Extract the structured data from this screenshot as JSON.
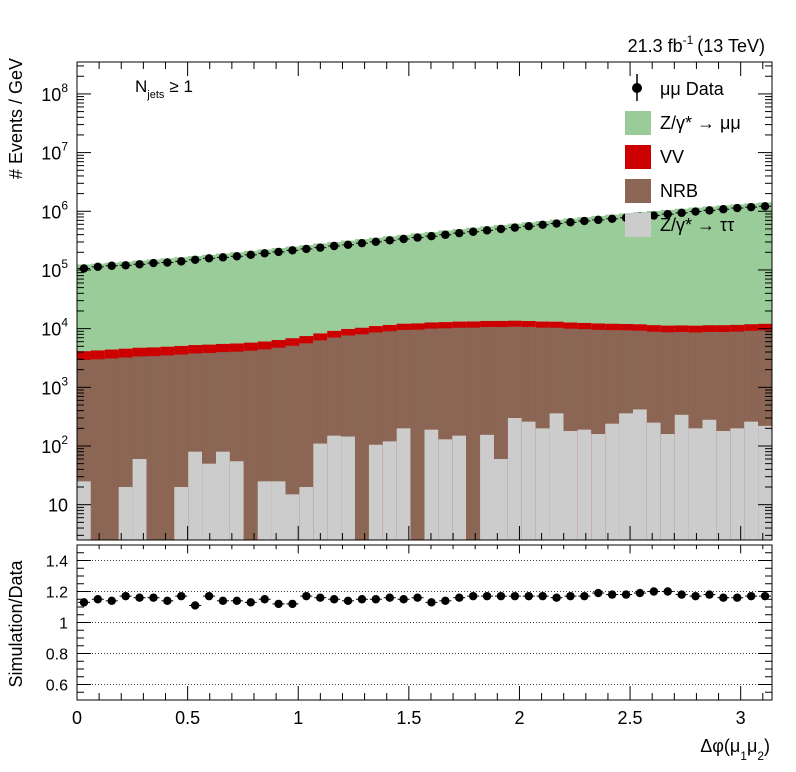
{
  "lumi_label": "21.3 fb",
  "lumi_exp": "-1",
  "lumi_energy": "(13 TeV)",
  "selection": {
    "base": "N",
    "sub": "jets",
    "rel": "≥ 1"
  },
  "colors": {
    "zmm": "#99cc99",
    "vv": "#cc0000",
    "nrb": "#8b6655",
    "ztt": "#cccccc",
    "data": "#000000"
  },
  "chart_data": [
    {
      "type": "area",
      "panel": "upper",
      "stacked": true,
      "log_y": true,
      "ylabel": "# Events / GeV",
      "ylim": [
        2.5,
        350000000
      ],
      "xlim": [
        0,
        3.1416
      ],
      "y_ticks": [
        {
          "v": 10,
          "base": "10",
          "exp": ""
        },
        {
          "v": 100,
          "base": "10",
          "exp": "2"
        },
        {
          "v": 1000,
          "base": "10",
          "exp": "3"
        },
        {
          "v": 10000,
          "base": "10",
          "exp": "4"
        },
        {
          "v": 100000,
          "base": "10",
          "exp": "5"
        },
        {
          "v": 1000000,
          "base": "10",
          "exp": "6"
        },
        {
          "v": 10000000,
          "base": "10",
          "exp": "7"
        },
        {
          "v": 100000000,
          "base": "10",
          "exp": "8"
        }
      ],
      "legend_position": "top-right",
      "legend": [
        {
          "key": "data",
          "label": "μμ Data"
        },
        {
          "key": "zmm",
          "label": "Z/γ* → μμ"
        },
        {
          "key": "vv",
          "label": "VV"
        },
        {
          "key": "nrb",
          "label": "NRB"
        },
        {
          "key": "ztt",
          "label": "Z/γ* → ττ"
        }
      ],
      "bin_edges": [
        0,
        0.0628,
        0.1257,
        0.1885,
        0.2513,
        0.3142,
        0.377,
        0.4398,
        0.5027,
        0.5655,
        0.6283,
        0.6912,
        0.754,
        0.8168,
        0.8796,
        0.9425,
        1.0053,
        1.0681,
        1.131,
        1.1938,
        1.2566,
        1.3195,
        1.3823,
        1.4451,
        1.508,
        1.5708,
        1.6336,
        1.6965,
        1.7593,
        1.8221,
        1.885,
        1.9478,
        2.0106,
        2.0735,
        2.1363,
        2.1991,
        2.2619,
        2.3248,
        2.3876,
        2.4504,
        2.5133,
        2.5761,
        2.6389,
        2.7018,
        2.7646,
        2.8274,
        2.8903,
        2.9531,
        3.0159,
        3.0788,
        3.1416
      ],
      "series": [
        {
          "key": "ztt",
          "values": [
            25,
            0,
            0,
            20,
            60,
            0,
            0,
            20,
            80,
            50,
            80,
            55,
            0,
            25,
            25,
            15,
            20,
            110,
            150,
            145,
            0,
            105,
            120,
            200,
            0,
            190,
            130,
            150,
            0,
            155,
            60,
            300,
            260,
            200,
            360,
            180,
            190,
            160,
            240,
            360,
            420,
            250,
            160,
            340,
            200,
            280,
            180,
            200,
            260,
            220
          ]
        },
        {
          "key": "nrb",
          "values": [
            2900,
            3000,
            3100,
            3200,
            3300,
            3400,
            3500,
            3600,
            3700,
            3800,
            3900,
            4000,
            4200,
            4400,
            4700,
            5100,
            5600,
            6200,
            6900,
            7500,
            8000,
            8500,
            8900,
            9300,
            9600,
            9800,
            10000,
            10200,
            10400,
            10500,
            10600,
            10500,
            10400,
            10200,
            10000,
            9800,
            9600,
            9400,
            9200,
            9000,
            8800,
            8600,
            8500,
            8400,
            8400,
            8500,
            8600,
            8700,
            8900,
            9100
          ]
        },
        {
          "key": "vv",
          "values": [
            1200,
            1250,
            1300,
            1330,
            1360,
            1390,
            1420,
            1450,
            1470,
            1490,
            1510,
            1530,
            1570,
            1610,
            1670,
            1750,
            1850,
            1970,
            2100,
            2230,
            2350,
            2450,
            2540,
            2620,
            2690,
            2750,
            2800,
            2830,
            2850,
            2860,
            2870,
            2850,
            2830,
            2800,
            2770,
            2740,
            2710,
            2690,
            2670,
            2650,
            2630,
            2620,
            2610,
            2610,
            2620,
            2640,
            2660,
            2690,
            2720,
            2760
          ]
        },
        {
          "key": "zmm",
          "values": [
            120000,
            124000,
            129000,
            134000,
            140000,
            146000,
            153000,
            160000,
            168000,
            176000,
            185000,
            195000,
            206000,
            218000,
            230000,
            244000,
            258000,
            274000,
            290000,
            307000,
            325000,
            344000,
            364000,
            385000,
            408000,
            432000,
            457000,
            484000,
            512000,
            541000,
            571000,
            603000,
            636000,
            670000,
            706000,
            744000,
            783000,
            823000,
            865000,
            908000,
            953000,
            999000,
            1046000,
            1095000,
            1145000,
            1196000,
            1248000,
            1301000,
            1355000,
            1410000
          ]
        }
      ],
      "data_points": [
        106000,
        113000,
        118000,
        120000,
        125000,
        131000,
        134000,
        140000,
        149000,
        158000,
        164000,
        171000,
        181000,
        192000,
        203000,
        216000,
        228000,
        240000,
        256000,
        268000,
        286000,
        302000,
        320000,
        337000,
        356000,
        376000,
        398000,
        424000,
        448000,
        473000,
        499000,
        527000,
        557000,
        588000,
        618000,
        650000,
        682000,
        714000,
        744000,
        776000,
        809000,
        846000,
        894000,
        940000,
        990000,
        1036000,
        1084000,
        1135000,
        1176000,
        1216000
      ]
    },
    {
      "type": "scatter",
      "panel": "lower",
      "ylabel": "Simulation/Data",
      "xlabel": "Δφ(μ",
      "xlabel_sub1": "1",
      "xlabel_mid": "μ",
      "xlabel_sub2": "2",
      "xlabel_end": ")",
      "ylim": [
        0.5,
        1.5
      ],
      "xlim": [
        0,
        3.1416
      ],
      "grid_lines": [
        0.6,
        0.8,
        1.0,
        1.2,
        1.4
      ],
      "y_ticks": [
        {
          "v": 0.6,
          "label": "0.6"
        },
        {
          "v": 0.8,
          "label": "0.8"
        },
        {
          "v": 1.0,
          "label": "1"
        },
        {
          "v": 1.2,
          "label": "1.2"
        },
        {
          "v": 1.4,
          "label": "1.4"
        }
      ],
      "x_ticks": [
        {
          "v": 0,
          "label": "0"
        },
        {
          "v": 0.5,
          "label": "0.5"
        },
        {
          "v": 1,
          "label": "1"
        },
        {
          "v": 1.5,
          "label": "1.5"
        },
        {
          "v": 2,
          "label": "2"
        },
        {
          "v": 2.5,
          "label": "2.5"
        },
        {
          "v": 3,
          "label": "3"
        }
      ],
      "x": [
        0.0314,
        0.0942,
        0.1571,
        0.2199,
        0.2827,
        0.3456,
        0.4084,
        0.4712,
        0.5341,
        0.5969,
        0.6597,
        0.7226,
        0.7854,
        0.8482,
        0.9111,
        0.9739,
        1.0367,
        1.0996,
        1.1624,
        1.2252,
        1.2881,
        1.3509,
        1.4137,
        1.4765,
        1.5394,
        1.6022,
        1.665,
        1.7279,
        1.7907,
        1.8535,
        1.9164,
        1.9792,
        2.042,
        2.1049,
        2.1677,
        2.2305,
        2.2934,
        2.3562,
        2.419,
        2.4819,
        2.5447,
        2.6075,
        2.6704,
        2.7332,
        2.796,
        2.8589,
        2.9217,
        2.9845,
        3.0474,
        3.1102
      ],
      "values": [
        1.13,
        1.15,
        1.14,
        1.17,
        1.16,
        1.16,
        1.14,
        1.17,
        1.11,
        1.17,
        1.14,
        1.14,
        1.13,
        1.15,
        1.12,
        1.12,
        1.17,
        1.16,
        1.15,
        1.14,
        1.15,
        1.15,
        1.16,
        1.15,
        1.16,
        1.13,
        1.14,
        1.16,
        1.17,
        1.17,
        1.17,
        1.17,
        1.17,
        1.17,
        1.16,
        1.17,
        1.17,
        1.19,
        1.18,
        1.18,
        1.19,
        1.2,
        1.2,
        1.18,
        1.17,
        1.18,
        1.16,
        1.16,
        1.17,
        1.17
      ]
    }
  ]
}
